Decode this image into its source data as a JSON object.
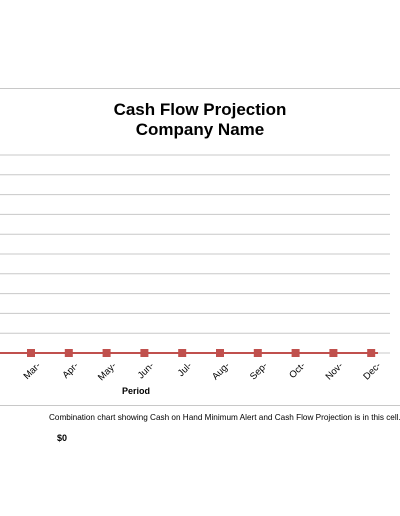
{
  "chart_data": {
    "type": "line",
    "title": "Cash Flow Projection",
    "subtitle": "Company Name",
    "xlabel": "Period",
    "categories": [
      "Mar-",
      "Apr-",
      "May-",
      "Jun-",
      "Jul-",
      "Aug-",
      "Sep-",
      "Oct-",
      "Nov-",
      "Dec-"
    ],
    "series": [
      {
        "values": [
          0,
          0,
          0,
          0,
          0,
          0,
          0,
          0,
          0,
          0
        ],
        "color": "#c0504d",
        "marker": "square"
      }
    ],
    "gridlines": 10,
    "grid": true
  },
  "caption": "Combination chart showing Cash on Hand Minimum Alert and Cash Flow Projection is in this cell.",
  "cash_value": "$0"
}
